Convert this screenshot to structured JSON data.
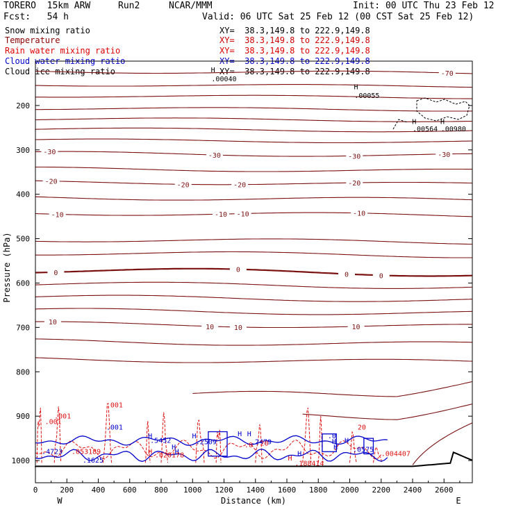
{
  "header": {
    "model": "TORERO  15km ARW",
    "run": "Run2",
    "org": "NCAR/MMM",
    "init": "Init: 00 UTC Thu 23 Feb 12",
    "fcst": "Fcst:   54 h",
    "valid": "Valid: 06 UTC Sat 25 Feb 12 (00 CST Sat 25 Feb 12)"
  },
  "legend": [
    {
      "name": "Snow mixing ratio",
      "color": "#000000",
      "xy": "XY=  38.3,149.8 to 222.9,149.8",
      "xy_color": "#000000"
    },
    {
      "name": "Temperature",
      "color": "#8b0000",
      "xy": "XY=  38.3,149.8 to 222.9,149.8",
      "xy_color": "#cc0000"
    },
    {
      "name": "Rain water mixing ratio",
      "color": "#dd0000",
      "xy": "XY=  38.3,149.8 to 222.9,149.8",
      "xy_color": "#dd0000"
    },
    {
      "name": "Cloud water mixing ratio",
      "color": "#0000cc",
      "xy": "XY=  38.3,149.8 to 222.9,149.8",
      "xy_color": "#0000cc"
    },
    {
      "name": "Cloud ice mixing ratio",
      "color": "#000000",
      "xy": "XY=  38.3,149.8 to 222.9,149.8",
      "xy_color": "#000000"
    }
  ],
  "chart_data": {
    "type": "cross-section contour",
    "xlabel": "Distance (km)",
    "ylabel": "Pressure (hPa)",
    "xlim": [
      0,
      2780
    ],
    "ylim": [
      1050,
      100
    ],
    "x_ticks": [
      0,
      200,
      400,
      600,
      800,
      1000,
      1200,
      1400,
      1600,
      1800,
      2000,
      2200,
      2400,
      2600
    ],
    "x_tick_labels": [
      "0",
      "200",
      "400",
      "600",
      "800",
      "1000",
      "1200",
      "1400",
      "1600",
      "1800",
      "2000",
      "2200",
      "2400",
      "2600"
    ],
    "y_ticks": [
      200,
      300,
      400,
      500,
      600,
      700,
      800,
      900,
      1000
    ],
    "y_tick_labels": [
      "200",
      "300",
      "400",
      "500",
      "600",
      "700",
      "800",
      "900",
      "1000"
    ],
    "left_end_label": "W",
    "right_end_label": "E",
    "temperature_contours": [
      {
        "p": 125,
        "bump": 4,
        "label": "-70",
        "label_x": [
          2620
        ]
      },
      {
        "p": 155,
        "bump": 3,
        "label": null,
        "label_x": []
      },
      {
        "p": 180,
        "bump": 3,
        "label": null,
        "label_x": []
      },
      {
        "p": 208,
        "bump": 3,
        "label": null,
        "label_x": []
      },
      {
        "p": 232,
        "bump": 3,
        "label": null,
        "label_x": []
      },
      {
        "p": 255,
        "bump": 3,
        "label": null,
        "label_x": []
      },
      {
        "p": 280,
        "bump": 3,
        "label": null,
        "label_x": []
      },
      {
        "p": 310,
        "bump": 4,
        "label": "-30",
        "label_x": [
          90,
          1140,
          2030,
          2600
        ]
      },
      {
        "p": 345,
        "bump": 4,
        "label": null,
        "label_x": []
      },
      {
        "p": 375,
        "bump": 4,
        "label": "-20",
        "label_x": [
          100,
          940,
          1300,
          2030
        ]
      },
      {
        "p": 410,
        "bump": 5,
        "label": null,
        "label_x": []
      },
      {
        "p": 445,
        "bump": 5,
        "label": "-10",
        "label_x": [
          140,
          1180,
          1320,
          2060
        ]
      },
      {
        "p": 505,
        "bump": 5,
        "label": null,
        "label_x": []
      },
      {
        "p": 535,
        "bump": 5,
        "label": null,
        "label_x": []
      },
      {
        "p": 575,
        "bump": 6,
        "label": "0",
        "label_x": [
          130,
          1290,
          1980,
          2200
        ]
      },
      {
        "p": 605,
        "bump": 5,
        "label": null,
        "label_x": []
      },
      {
        "p": 635,
        "bump": 5,
        "label": null,
        "label_x": []
      },
      {
        "p": 665,
        "bump": 5,
        "label": null,
        "label_x": []
      },
      {
        "p": 695,
        "bump": 5,
        "label": "10",
        "label_x": [
          110,
          1110,
          1290,
          2040
        ]
      },
      {
        "p": 735,
        "bump": 6,
        "label": null,
        "label_x": []
      },
      {
        "p": 775,
        "bump": 6,
        "label": null,
        "label_x": []
      }
    ],
    "ice_labels": [
      {
        "x": 1120,
        "p": 145,
        "text": ".00040"
      },
      {
        "x": 2030,
        "p": 183,
        "text": ".00055"
      },
      {
        "x": 2400,
        "p": 258,
        "text": ".00564"
      },
      {
        "x": 2580,
        "p": 258,
        "text": ".00980"
      }
    ],
    "ice_highs": [
      {
        "x": 1130,
        "p": 125
      },
      {
        "x": 2040,
        "p": 163
      },
      {
        "x": 2410,
        "p": 242
      },
      {
        "x": 2590,
        "p": 242
      }
    ],
    "rain_labels": [
      {
        "x": 450,
        "p": 880,
        "text": ".001"
      },
      {
        "x": 120,
        "p": 905,
        "text": ".001"
      },
      {
        "x": 60,
        "p": 918,
        "text": ".001"
      },
      {
        "x": 230,
        "p": 985,
        "text": ".053189"
      },
      {
        "x": 760,
        "p": 993,
        "text": ".020178"
      },
      {
        "x": 1650,
        "p": 1012,
        "text": ".188414"
      },
      {
        "x": 1330,
        "p": 970,
        "text": ".0"
      },
      {
        "x": 1430,
        "p": 966,
        "text": "20"
      },
      {
        "x": 2050,
        "p": 930,
        "text": "20"
      },
      {
        "x": 2200,
        "p": 990,
        "text": ".004407"
      }
    ],
    "cloud_labels": [
      {
        "x": 40,
        "p": 985,
        "text": ".4723"
      },
      {
        "x": 450,
        "p": 930,
        "text": ".001"
      },
      {
        "x": 730,
        "p": 960,
        "text": ".5452"
      },
      {
        "x": 1020,
        "p": 963,
        "text": ".2509"
      },
      {
        "x": 1370,
        "p": 963,
        "text": ".2479"
      },
      {
        "x": 1860,
        "p": 950,
        "text": ".0"
      },
      {
        "x": 2020,
        "p": 980,
        "text": ".0575"
      },
      {
        "x": 300,
        "p": 1005,
        "text": ".1625"
      }
    ],
    "cloud_highs": [
      {
        "x": 730,
        "p": 950
      },
      {
        "x": 880,
        "p": 975
      },
      {
        "x": 1010,
        "p": 950
      },
      {
        "x": 1300,
        "p": 945
      },
      {
        "x": 1360,
        "p": 945
      },
      {
        "x": 1900,
        "p": 962
      },
      {
        "x": 1980,
        "p": 960
      },
      {
        "x": 900,
        "p": 985
      },
      {
        "x": 1680,
        "p": 990
      },
      {
        "x": 1910,
        "p": 975
      }
    ],
    "rain_highs": [
      {
        "x": 730,
        "p": 985
      },
      {
        "x": 1620,
        "p": 1000
      }
    ]
  }
}
